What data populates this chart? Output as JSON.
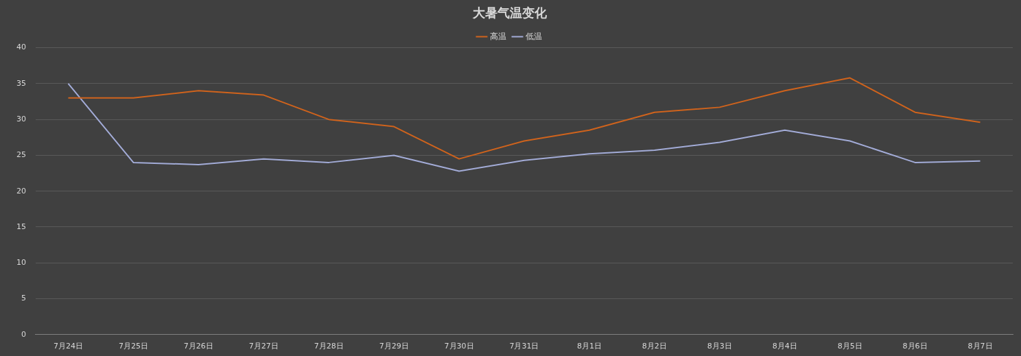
{
  "chart_data": {
    "type": "line",
    "title": "大暑气温变化",
    "categories": [
      "7月24日",
      "7月25日",
      "7月26日",
      "7月27日",
      "7月28日",
      "7月29日",
      "7月30日",
      "7月31日",
      "8月1日",
      "8月2日",
      "8月3日",
      "8月4日",
      "8月5日",
      "8月6日",
      "8月7日"
    ],
    "series": [
      {
        "name": "高温",
        "color": "#d0631c",
        "values": [
          33,
          33,
          34,
          33.4,
          30,
          29,
          24.5,
          27,
          28.5,
          31,
          31.7,
          34,
          35.8,
          31,
          29.6
        ]
      },
      {
        "name": "低温",
        "color": "#a3acd8",
        "values": [
          35,
          24,
          23.7,
          24.5,
          24,
          25,
          22.8,
          24.3,
          25.2,
          25.7,
          26.8,
          28.5,
          27,
          24,
          24.2
        ]
      }
    ],
    "ylim": [
      0,
      40
    ],
    "yticks": [
      0,
      5,
      10,
      15,
      20,
      25,
      30,
      35,
      40
    ],
    "grid": "y",
    "legend": "top",
    "marker": "none",
    "line_style": "solid"
  }
}
